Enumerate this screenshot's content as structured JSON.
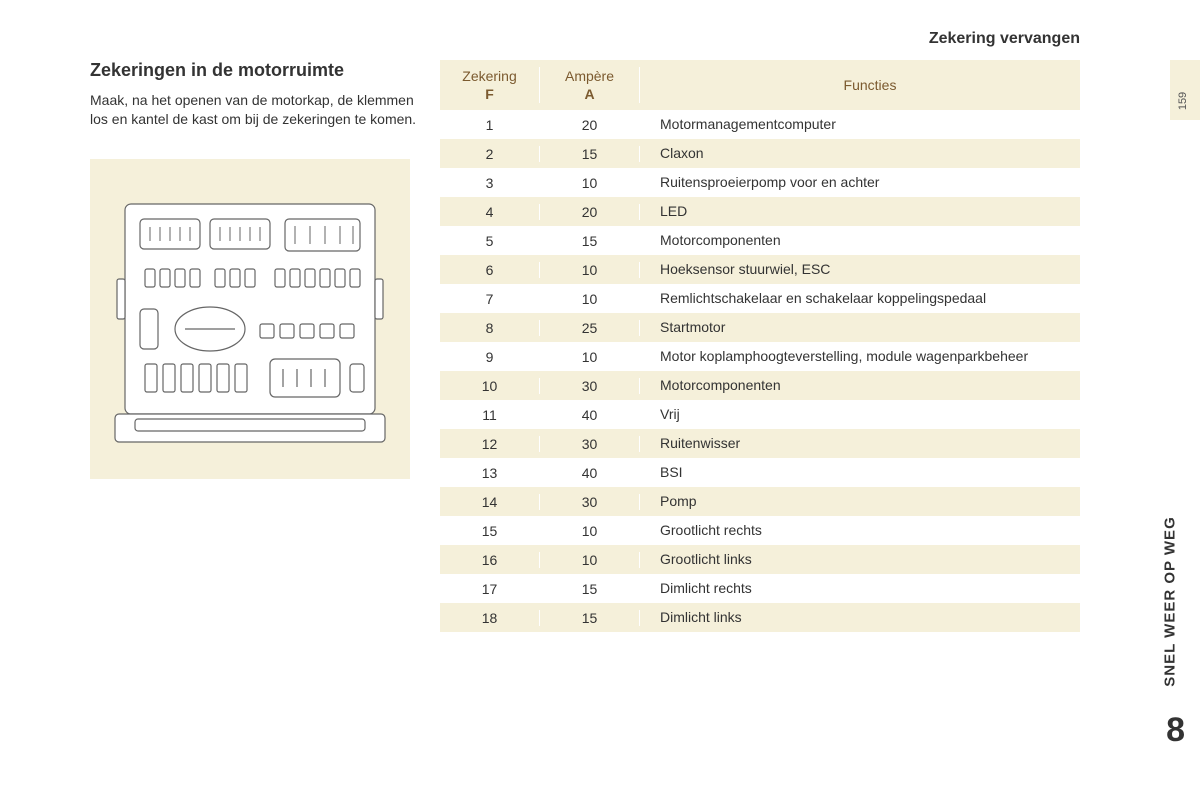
{
  "section_title": "Zekering vervangen",
  "heading": "Zekeringen in de motorruimte",
  "intro": "Maak, na het openen van de motorkap, de klemmen los en kantel de kast om bij de zekeringen te komen.",
  "page_number": "159",
  "side_tab": "SNEL WEER OP WEG",
  "chapter": "8",
  "table": {
    "col1_label": "Zekering",
    "col1_sub": "F",
    "col2_label": "Ampère",
    "col2_sub": "A",
    "col3_label": "Functies",
    "header_bg": "#f5f0da",
    "header_color": "#7b5a2f",
    "row_alt_bg": "#f5f0da",
    "row_bg": "#ffffff",
    "rows": [
      {
        "f": "1",
        "a": "20",
        "fn": "Motormanagementcomputer"
      },
      {
        "f": "2",
        "a": "15",
        "fn": "Claxon"
      },
      {
        "f": "3",
        "a": "10",
        "fn": "Ruitensproeierpomp voor en achter"
      },
      {
        "f": "4",
        "a": "20",
        "fn": "LED"
      },
      {
        "f": "5",
        "a": "15",
        "fn": "Motorcomponenten"
      },
      {
        "f": "6",
        "a": "10",
        "fn": "Hoeksensor stuurwiel, ESC"
      },
      {
        "f": "7",
        "a": "10",
        "fn": "Remlichtschakelaar en schakelaar koppelingspedaal"
      },
      {
        "f": "8",
        "a": "25",
        "fn": "Startmotor"
      },
      {
        "f": "9",
        "a": "10",
        "fn": "Motor koplamphoogteverstelling, module wagenparkbeheer"
      },
      {
        "f": "10",
        "a": "30",
        "fn": "Motorcomponenten"
      },
      {
        "f": "11",
        "a": "40",
        "fn": "Vrij"
      },
      {
        "f": "12",
        "a": "30",
        "fn": "Ruitenwisser"
      },
      {
        "f": "13",
        "a": "40",
        "fn": "BSI"
      },
      {
        "f": "14",
        "a": "30",
        "fn": "Pomp"
      },
      {
        "f": "15",
        "a": "10",
        "fn": "Grootlicht rechts"
      },
      {
        "f": "16",
        "a": "10",
        "fn": "Grootlicht links"
      },
      {
        "f": "17",
        "a": "15",
        "fn": "Dimlicht rechts"
      },
      {
        "f": "18",
        "a": "15",
        "fn": "Dimlicht links"
      }
    ]
  },
  "diagram": {
    "bg": "#f5f0da",
    "stroke": "#666666",
    "fill": "#ffffff"
  }
}
